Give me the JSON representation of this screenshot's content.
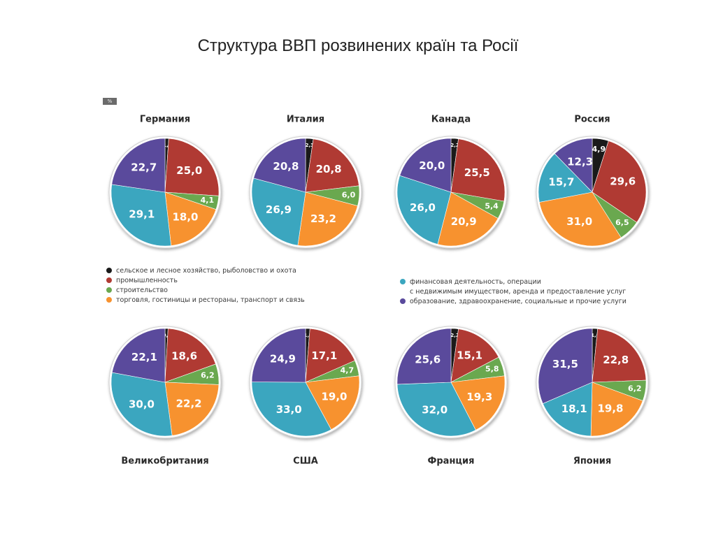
{
  "title": "Структура ВВП розвинених країн та Росії",
  "unit_badge": "%",
  "colors": {
    "agriculture": "#1a1a1a",
    "industry": "#b03a33",
    "construction": "#6aa84f",
    "trade": "#f7922f",
    "finance": "#3ba6bf",
    "education": "#5a4a9c"
  },
  "legend_left": [
    {
      "key": "agriculture",
      "label": "сельское и лесное хозяйство, рыболовство и охота"
    },
    {
      "key": "industry",
      "label": "промышленность"
    },
    {
      "key": "construction",
      "label": "строительство"
    },
    {
      "key": "trade",
      "label": "торговля, гостиницы и рестораны, транспорт и связь"
    }
  ],
  "legend_right": [
    {
      "key": "finance",
      "label": "финансовая деятельность, операции"
    },
    {
      "key": "",
      "label": "с недвижимым имуществом, аренда и предоставление услуг"
    },
    {
      "key": "education",
      "label": "образование, здравоохранение, социальные и прочие услуги"
    }
  ],
  "chart_data": [
    {
      "type": "pie",
      "title": "Германия",
      "categories": [
        "agriculture",
        "industry",
        "construction",
        "trade",
        "finance",
        "education"
      ],
      "values": [
        1.1,
        25.0,
        4.1,
        18.0,
        29.1,
        22.7
      ],
      "labels": [
        "1,1",
        "25,0",
        "4,1",
        "18,0",
        "29,1",
        "22,7"
      ]
    },
    {
      "type": "pie",
      "title": "Италия",
      "categories": [
        "agriculture",
        "industry",
        "construction",
        "trade",
        "finance",
        "education"
      ],
      "values": [
        2.3,
        20.8,
        6.0,
        23.2,
        26.9,
        20.8
      ],
      "labels": [
        "2,3",
        "20,8",
        "6,0",
        "23,2",
        "26,9",
        "20,8"
      ]
    },
    {
      "type": "pie",
      "title": "Канада",
      "categories": [
        "agriculture",
        "industry",
        "construction",
        "trade",
        "finance",
        "education"
      ],
      "values": [
        2.2,
        25.5,
        5.4,
        20.9,
        26.0,
        20.0
      ],
      "labels": [
        "2,2",
        "25,5",
        "5,4",
        "20,9",
        "26,0",
        "20,0"
      ]
    },
    {
      "type": "pie",
      "title": "Россия",
      "categories": [
        "agriculture",
        "industry",
        "construction",
        "trade",
        "finance",
        "education"
      ],
      "values": [
        4.9,
        29.6,
        6.5,
        31.0,
        15.7,
        12.3
      ],
      "labels": [
        "4,9",
        "29,6",
        "6,5",
        "31,0",
        "15,7",
        "12,3"
      ]
    },
    {
      "type": "pie",
      "title": "Великобритания",
      "categories": [
        "agriculture",
        "industry",
        "construction",
        "trade",
        "finance",
        "education"
      ],
      "values": [
        0.9,
        18.6,
        6.2,
        22.2,
        30.0,
        22.1
      ],
      "labels": [
        "0,9",
        "18,6",
        "6,2",
        "22,2",
        "30,0",
        "22,1"
      ]
    },
    {
      "type": "pie",
      "title": "США",
      "categories": [
        "agriculture",
        "industry",
        "construction",
        "trade",
        "finance",
        "education"
      ],
      "values": [
        1.3,
        17.1,
        4.7,
        19.0,
        33.0,
        24.9
      ],
      "labels": [
        "1,3",
        "17,1",
        "4,7",
        "19,0",
        "33,0",
        "24,9"
      ]
    },
    {
      "type": "pie",
      "title": "Франция",
      "categories": [
        "agriculture",
        "industry",
        "construction",
        "trade",
        "finance",
        "education"
      ],
      "values": [
        2.2,
        15.1,
        5.8,
        19.3,
        32.0,
        25.6
      ],
      "labels": [
        "2,2",
        "15,1",
        "5,8",
        "19,3",
        "32,0",
        "25,6"
      ]
    },
    {
      "type": "pie",
      "title": "Япония",
      "categories": [
        "agriculture",
        "industry",
        "construction",
        "trade",
        "finance",
        "education"
      ],
      "values": [
        1.6,
        22.8,
        6.2,
        19.8,
        18.1,
        31.5
      ],
      "labels": [
        "1,6",
        "22,8",
        "6,2",
        "19,8",
        "18,1",
        "31,5"
      ]
    }
  ]
}
